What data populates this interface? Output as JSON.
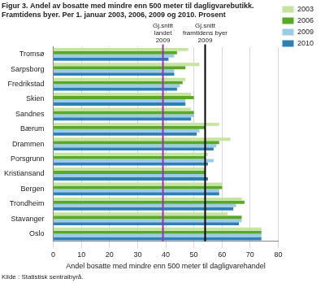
{
  "chart_data": {
    "type": "bar",
    "orientation": "horizontal",
    "title": [
      "Figur 3. Andel av bosatte med mindre enn 500 meter til dagligvarebutikk.",
      "Framtidens byer. Per 1. januar 2003, 2006, 2009 og 2010. Prosent"
    ],
    "categories": [
      "Tromsø",
      "Sarpsborg",
      "Fredrikstad",
      "Skien",
      "Sandnes",
      "Bærum",
      "Drammen",
      "Porsgrunn",
      "Kristiansand",
      "Bergen",
      "Trondheim",
      "Stavanger",
      "Oslo"
    ],
    "series": [
      {
        "name": "2003",
        "color": "#c6e3a0",
        "values": [
          48,
          52,
          47,
          49,
          49,
          59,
          63,
          55,
          54,
          60,
          67,
          62,
          74
        ]
      },
      {
        "name": "2006",
        "color": "#5aa82a",
        "values": [
          44,
          47,
          46,
          50,
          50,
          54,
          59,
          54,
          54,
          60,
          68,
          67,
          74
        ]
      },
      {
        "name": "2009",
        "color": "#9ccbe8",
        "values": [
          43,
          43,
          45,
          47,
          50,
          52,
          58,
          57,
          54,
          59,
          65,
          67,
          74
        ]
      },
      {
        "name": "2010",
        "color": "#2f7fb5",
        "values": [
          41,
          43,
          44,
          47,
          49,
          51,
          57,
          55,
          55,
          59,
          64,
          66,
          74
        ]
      }
    ],
    "xlabel": "Andel bosatte med mindre enn 500 meter til dagligvarehandel",
    "xlim": [
      0,
      80
    ],
    "xticks": [
      0,
      10,
      20,
      30,
      40,
      50,
      60,
      70,
      80
    ],
    "grid": true,
    "legend": "top right",
    "reference_lines": [
      {
        "value": 39,
        "label": [
          "Gj.snitt",
          "landet",
          "2009"
        ],
        "color": "#9b30b0"
      },
      {
        "value": 54,
        "label": [
          "Gj.snitt",
          "framtidens byer",
          "2009"
        ],
        "color": "#000000"
      }
    ],
    "source": "Kilde : Statistisk sentralbyrå."
  }
}
